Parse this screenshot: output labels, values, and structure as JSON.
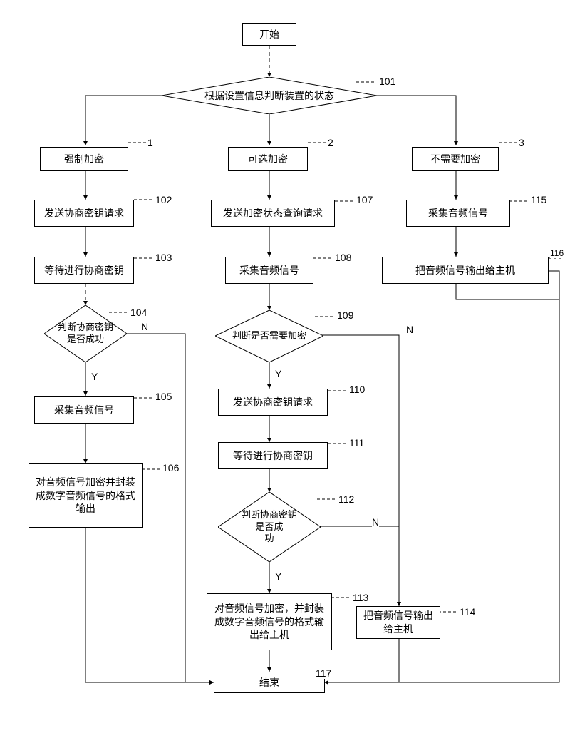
{
  "nodes": {
    "start": "开始",
    "decision101": "根据设置信息判断装置的状态",
    "branch1": "强制加密",
    "branch2": "可选加密",
    "branch3": "不需要加密",
    "box102": "发送协商密钥请求",
    "box103": "等待进行协商密钥",
    "dec104": "判断协商密钥\n是否成功",
    "box105": "采集音频信号",
    "box106": "对音频信号加密并封装成数字音频信号的格式输出",
    "box107": "发送加密状态查询请求",
    "box108": "采集音频信号",
    "dec109": "判断是否需要加密",
    "box110": "发送协商密钥请求",
    "box111": "等待进行协商密钥",
    "dec112": "判断协商密钥\n是否成\n功",
    "box113": "对音频信号加密，并封装成数字音频信号的格式输出给主机",
    "box114": "把音频信号输出给主机",
    "box115": "采集音频信号",
    "box116": "把音频信号输出给主机",
    "end": "结束"
  },
  "labels": {
    "l101": "101",
    "l1": "1",
    "l2": "2",
    "l3": "3",
    "l102": "102",
    "l103": "103",
    "l104": "104",
    "l105": "105",
    "l106": "106",
    "l107": "107",
    "l108": "108",
    "l109": "109",
    "l110": "110",
    "l111": "111",
    "l112": "112",
    "l113": "113",
    "l114": "114",
    "l115": "115",
    "l116": "116",
    "l117": "117",
    "Y": "Y",
    "N": "N"
  },
  "style": {
    "background": "#ffffff",
    "stroke": "#000000",
    "font": "SimSun"
  }
}
